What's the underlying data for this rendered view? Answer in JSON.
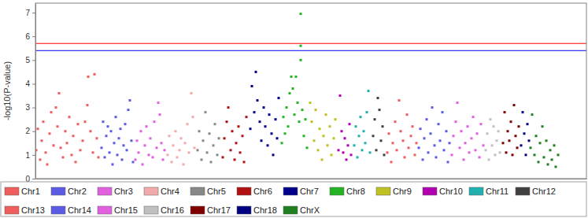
{
  "chart_data": {
    "type": "scatter",
    "y_label": "-log10(P-value)",
    "xlim": [
      0,
      700
    ],
    "ylim": [
      0,
      7.4
    ],
    "yticks": [
      0,
      1,
      2,
      3,
      4,
      5,
      6,
      7
    ],
    "grid": false,
    "tick_labels": "y",
    "legend": "bottom",
    "marker": "square",
    "threshold_lines": [
      {
        "value": 5.7,
        "color": "#ff0000"
      },
      {
        "value": 5.4,
        "color": "#0000ff"
      }
    ],
    "series": [
      {
        "name": "Chr1",
        "color": "#f05d5d",
        "x": [
          1,
          3,
          6,
          8,
          10,
          13,
          15,
          18,
          20,
          23,
          26,
          28,
          30,
          32,
          35,
          38,
          40,
          43,
          46,
          48,
          51,
          54,
          57,
          60,
          63,
          66,
          67,
          70,
          73,
          75,
          78,
          80
        ],
        "values": [
          1.2,
          2.1,
          0.8,
          1.6,
          2.4,
          1.1,
          0.6,
          1.9,
          2.8,
          1.4,
          3.0,
          2.2,
          3.6,
          1.3,
          0.9,
          2.0,
          1.5,
          2.6,
          1.0,
          1.8,
          0.7,
          2.3,
          1.2,
          1.6,
          2.4,
          3.1,
          4.3,
          2.0,
          1.1,
          4.4,
          1.7,
          0.9
        ]
      },
      {
        "name": "Chr2",
        "color": "#5b5be6",
        "x": [
          84,
          86,
          88,
          90,
          92,
          94,
          96,
          98,
          100,
          102,
          104,
          106,
          108,
          110,
          112,
          114,
          116,
          118,
          120,
          122,
          124
        ],
        "values": [
          1.3,
          2.4,
          0.9,
          1.8,
          2.2,
          1.1,
          2.0,
          0.6,
          1.5,
          2.6,
          1.0,
          1.7,
          2.1,
          0.8,
          1.4,
          2.3,
          1.2,
          2.9,
          3.3,
          1.6,
          0.7
        ]
      },
      {
        "name": "Chr3",
        "color": "#e060e0",
        "x": [
          127,
          129,
          131,
          134,
          136,
          139,
          141,
          144,
          146,
          149,
          151,
          154,
          156,
          158,
          160,
          162,
          164
        ],
        "values": [
          0.8,
          1.6,
          1.1,
          2.0,
          0.6,
          1.4,
          2.2,
          1.0,
          1.7,
          0.9,
          2.4,
          1.3,
          3.2,
          2.7,
          1.5,
          0.8,
          1.2
        ]
      },
      {
        "name": "Chr4",
        "color": "#f4aaaa",
        "x": [
          168,
          170,
          173,
          175,
          178,
          180,
          183,
          185,
          188,
          190,
          193,
          195,
          198,
          200,
          202
        ],
        "values": [
          1.0,
          1.8,
          0.7,
          1.4,
          2.0,
          0.9,
          1.2,
          1.7,
          0.6,
          1.5,
          2.3,
          1.1,
          3.6,
          2.6,
          1.3
        ]
      },
      {
        "name": "Chr5",
        "color": "#888888",
        "x": [
          206,
          208,
          211,
          213,
          216,
          218,
          221,
          223,
          226,
          228,
          231,
          233
        ],
        "values": [
          1.2,
          2.0,
          0.8,
          1.6,
          2.8,
          1.1,
          1.9,
          0.7,
          1.4,
          2.3,
          1.0,
          1.7
        ]
      },
      {
        "name": "Chr6",
        "color": "#b01010",
        "x": [
          238,
          240,
          243,
          245,
          248,
          250,
          253,
          255,
          258,
          260,
          263,
          265,
          268
        ],
        "values": [
          0.9,
          1.7,
          2.4,
          3.0,
          1.2,
          2.0,
          0.8,
          1.5,
          2.2,
          1.1,
          1.8,
          0.7,
          2.6
        ]
      },
      {
        "name": "Chr7",
        "color": "#00008b",
        "x": [
          273,
          275,
          278,
          280,
          282,
          285,
          287,
          290,
          292,
          295,
          297,
          300,
          302,
          305,
          307,
          309
        ],
        "values": [
          2.1,
          3.9,
          2.8,
          4.5,
          3.3,
          2.4,
          1.6,
          3.0,
          2.2,
          1.4,
          2.7,
          1.9,
          1.0,
          2.5,
          1.7,
          3.4
        ]
      },
      {
        "name": "Chr8",
        "color": "#22b422",
        "x": [
          313,
          315,
          317,
          319,
          321,
          323,
          325,
          327,
          329,
          331,
          333,
          335,
          337,
          337,
          337,
          339,
          341,
          343,
          345
        ],
        "values": [
          1.5,
          2.6,
          1.9,
          3.0,
          2.2,
          3.6,
          4.3,
          3.8,
          2.7,
          4.3,
          3.2,
          2.4,
          6.95,
          5.6,
          5.0,
          2.9,
          1.8,
          2.5,
          1.3
        ]
      },
      {
        "name": "Chr9",
        "color": "#c0c020",
        "x": [
          349,
          351,
          354,
          356,
          359,
          361,
          364,
          366,
          369,
          371,
          374,
          376,
          379,
          381
        ],
        "values": [
          3.2,
          2.4,
          1.6,
          2.9,
          1.2,
          2.1,
          0.8,
          1.8,
          2.7,
          1.4,
          2.2,
          1.0,
          1.7,
          2.5
        ]
      },
      {
        "name": "Chr10",
        "color": "#b000b0",
        "x": [
          385,
          387,
          389,
          391,
          393,
          395,
          397,
          399,
          401
        ],
        "values": [
          1.2,
          3.5,
          2.0,
          1.1,
          1.7,
          0.8,
          1.4,
          2.3,
          1.0
        ]
      },
      {
        "name": "Chr11",
        "color": "#20b0b0",
        "x": [
          405,
          407,
          409,
          411,
          413,
          415,
          417,
          419,
          421,
          423,
          425
        ],
        "values": [
          1.4,
          2.2,
          0.9,
          1.8,
          2.6,
          1.2,
          2.0,
          1.5,
          2.8,
          3.7,
          1.1
        ]
      },
      {
        "name": "Chr12",
        "color": "#404040",
        "x": [
          429,
          431,
          433,
          435,
          437,
          439,
          441,
          443
        ],
        "values": [
          1.8,
          2.5,
          1.2,
          3.4,
          2.9,
          1.6,
          2.2,
          1.0
        ]
      },
      {
        "name": "Chr13",
        "color": "#f05d5d",
        "x": [
          447,
          449,
          452,
          454,
          457,
          459,
          462,
          464,
          467,
          469,
          472,
          474,
          477,
          479,
          482,
          484
        ],
        "values": [
          1.1,
          1.9,
          0.7,
          1.5,
          2.4,
          1.2,
          3.3,
          2.0,
          1.6,
          0.9,
          2.7,
          1.3,
          1.8,
          2.2,
          1.0,
          1.5
        ]
      },
      {
        "name": "Chr14",
        "color": "#5b5be6",
        "x": [
          487,
          489,
          492,
          494,
          497,
          499,
          502,
          504,
          507,
          509,
          512,
          514,
          517,
          519,
          522,
          524,
          526
        ],
        "values": [
          1.3,
          2.1,
          0.8,
          1.7,
          2.5,
          1.1,
          1.9,
          3.0,
          1.4,
          0.9,
          2.3,
          1.6,
          2.8,
          1.2,
          2.0,
          0.7,
          1.5
        ]
      },
      {
        "name": "Chr15",
        "color": "#e060e0",
        "x": [
          529,
          531,
          534,
          536,
          539,
          541,
          544,
          546,
          549,
          551,
          554,
          556,
          559,
          561,
          564,
          566,
          569
        ],
        "values": [
          1.0,
          1.8,
          2.4,
          3.2,
          1.3,
          2.0,
          0.8,
          1.5,
          2.2,
          1.1,
          1.7,
          2.6,
          1.2,
          1.9,
          0.9,
          2.3,
          1.4
        ]
      },
      {
        "name": "Chr16",
        "color": "#c0c0c0",
        "x": [
          572,
          574,
          576,
          578,
          580,
          582,
          584,
          586,
          588,
          590
        ],
        "values": [
          1.2,
          1.9,
          0.8,
          2.5,
          1.4,
          2.2,
          1.0,
          1.6,
          2.0,
          1.1
        ]
      },
      {
        "name": "Chr17",
        "color": "#800000",
        "x": [
          594,
          596,
          598,
          600,
          602,
          604,
          606,
          608,
          610,
          612,
          614
        ],
        "values": [
          1.5,
          2.8,
          1.1,
          2.0,
          1.6,
          2.4,
          1.0,
          3.1,
          1.8,
          1.3,
          2.2
        ]
      },
      {
        "name": "Chr18",
        "color": "#000080",
        "x": [
          617,
          619,
          621,
          623,
          625,
          627
        ],
        "values": [
          1.4,
          2.8,
          1.9,
          1.0,
          2.3,
          1.6
        ]
      },
      {
        "name": "ChrX",
        "color": "#208020",
        "x": [
          629,
          631,
          634,
          636,
          639,
          641,
          644,
          646,
          649,
          651,
          654,
          656,
          659,
          661,
          664
        ],
        "values": [
          1.3,
          2.7,
          1.0,
          1.8,
          0.7,
          1.5,
          2.2,
          0.9,
          1.6,
          0.6,
          1.2,
          0.8,
          1.4,
          0.5,
          1.0
        ]
      }
    ]
  }
}
